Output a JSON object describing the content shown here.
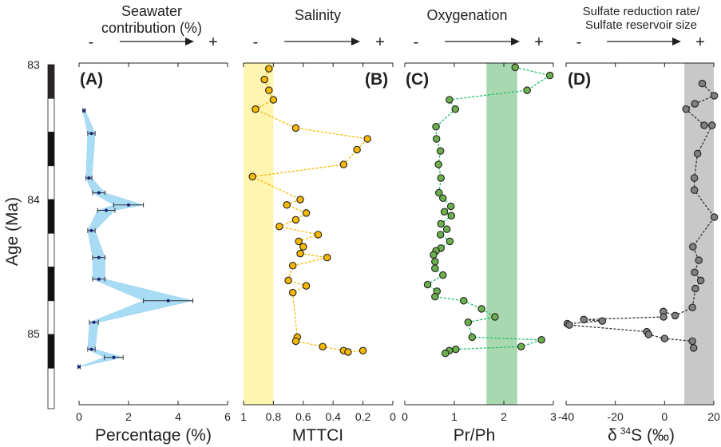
{
  "chart_data": [
    {
      "id": "A",
      "type": "area",
      "panel_label": "(A)",
      "header_lines": [
        "Seawater",
        "contribution (%)"
      ],
      "trend": {
        "minus": "-",
        "plus": "+"
      },
      "xlabel": "Percentage (%)",
      "xlim": [
        0,
        6
      ],
      "xticks": [
        "0",
        "2",
        "4",
        "6"
      ],
      "ylabel": "Age (Ma)",
      "ylim": [
        83,
        85.6
      ],
      "fill_color": "#a8dcf5",
      "point_color": "#1a237e",
      "points": [
        {
          "age": 83.34,
          "value": 0.2,
          "err": 0.05
        },
        {
          "age": 83.51,
          "value": 0.5,
          "err": 0.15
        },
        {
          "age": 83.84,
          "value": 0.4,
          "err": 0.12
        },
        {
          "age": 83.95,
          "value": 0.8,
          "err": 0.25
        },
        {
          "age": 84.04,
          "value": 2.0,
          "err": 0.6
        },
        {
          "age": 84.08,
          "value": 1.1,
          "err": 0.35
        },
        {
          "age": 84.23,
          "value": 0.5,
          "err": 0.15
        },
        {
          "age": 84.43,
          "value": 0.8,
          "err": 0.25
        },
        {
          "age": 84.59,
          "value": 0.8,
          "err": 0.25
        },
        {
          "age": 84.75,
          "value": 3.6,
          "err": 1.0
        },
        {
          "age": 84.91,
          "value": 0.6,
          "err": 0.18
        },
        {
          "age": 85.11,
          "value": 0.5,
          "err": 0.15
        },
        {
          "age": 85.17,
          "value": 1.4,
          "err": 0.38
        },
        {
          "age": 85.24,
          "value": 0.0,
          "err": 0.05
        }
      ]
    },
    {
      "id": "B",
      "type": "scatter",
      "panel_label": "(B)",
      "header_lines": [
        "Salinity"
      ],
      "trend": {
        "minus": "-",
        "plus": "+"
      },
      "xlabel": "MTTCI",
      "xlim": [
        1,
        0
      ],
      "xticks": [
        "1",
        "0.8",
        "0.6",
        "0.4",
        "0.2",
        "0"
      ],
      "band": [
        1.0,
        0.8
      ],
      "band_color": "#fff5b0",
      "marker_color": "#f5b800",
      "line_color": "#f5b800",
      "points": [
        {
          "age": 83.03,
          "value": 0.83
        },
        {
          "age": 83.11,
          "value": 0.86
        },
        {
          "age": 83.19,
          "value": 0.83
        },
        {
          "age": 83.26,
          "value": 0.8
        },
        {
          "age": 83.33,
          "value": 0.92
        },
        {
          "age": 83.47,
          "value": 0.65
        },
        {
          "age": 83.55,
          "value": 0.17
        },
        {
          "age": 83.63,
          "value": 0.24
        },
        {
          "age": 83.74,
          "value": 0.33
        },
        {
          "age": 83.83,
          "value": 0.94
        },
        {
          "age": 84.0,
          "value": 0.62
        },
        {
          "age": 84.04,
          "value": 0.71
        },
        {
          "age": 84.1,
          "value": 0.58
        },
        {
          "age": 84.15,
          "value": 0.65
        },
        {
          "age": 84.2,
          "value": 0.76
        },
        {
          "age": 84.26,
          "value": 0.5
        },
        {
          "age": 84.31,
          "value": 0.63
        },
        {
          "age": 84.35,
          "value": 0.6
        },
        {
          "age": 84.4,
          "value": 0.62
        },
        {
          "age": 84.43,
          "value": 0.44
        },
        {
          "age": 84.49,
          "value": 0.67
        },
        {
          "age": 84.6,
          "value": 0.7
        },
        {
          "age": 84.64,
          "value": 0.58
        },
        {
          "age": 84.69,
          "value": 0.67
        },
        {
          "age": 85.02,
          "value": 0.64
        },
        {
          "age": 85.05,
          "value": 0.65
        },
        {
          "age": 85.09,
          "value": 0.47
        },
        {
          "age": 85.12,
          "value": 0.33
        },
        {
          "age": 85.13,
          "value": 0.3
        },
        {
          "age": 85.12,
          "value": 0.2
        }
      ]
    },
    {
      "id": "C",
      "type": "scatter",
      "panel_label": "(C)",
      "header_lines": [
        "Oxygenation"
      ],
      "trend": {
        "minus": "-",
        "plus": "+"
      },
      "xlabel": "Pr/Ph",
      "xlim": [
        0,
        3
      ],
      "xticks": [
        "0",
        "1",
        "2",
        "3"
      ],
      "band": [
        1.65,
        2.27
      ],
      "band_color": "#a8d8b0",
      "marker_color": "#6ab04c",
      "line_color": "#1fbf6a",
      "points": [
        {
          "age": 83.02,
          "value": 2.23
        },
        {
          "age": 83.08,
          "value": 2.93
        },
        {
          "age": 83.19,
          "value": 2.47
        },
        {
          "age": 83.26,
          "value": 0.9
        },
        {
          "age": 83.33,
          "value": 1.02
        },
        {
          "age": 83.46,
          "value": 0.63
        },
        {
          "age": 83.55,
          "value": 0.64
        },
        {
          "age": 83.64,
          "value": 0.72
        },
        {
          "age": 83.74,
          "value": 0.68
        },
        {
          "age": 83.84,
          "value": 0.73
        },
        {
          "age": 83.95,
          "value": 0.69
        },
        {
          "age": 83.99,
          "value": 0.77
        },
        {
          "age": 84.05,
          "value": 0.93
        },
        {
          "age": 84.09,
          "value": 0.8
        },
        {
          "age": 84.12,
          "value": 0.94
        },
        {
          "age": 84.18,
          "value": 0.73
        },
        {
          "age": 84.22,
          "value": 0.85
        },
        {
          "age": 84.26,
          "value": 0.72
        },
        {
          "age": 84.31,
          "value": 0.91
        },
        {
          "age": 84.36,
          "value": 0.73
        },
        {
          "age": 84.38,
          "value": 0.63
        },
        {
          "age": 84.41,
          "value": 0.58
        },
        {
          "age": 84.46,
          "value": 0.61
        },
        {
          "age": 84.51,
          "value": 0.61
        },
        {
          "age": 84.56,
          "value": 0.77
        },
        {
          "age": 84.63,
          "value": 0.46
        },
        {
          "age": 84.68,
          "value": 0.65
        },
        {
          "age": 84.72,
          "value": 0.61
        },
        {
          "age": 84.75,
          "value": 1.19
        },
        {
          "age": 84.81,
          "value": 1.55
        },
        {
          "age": 84.87,
          "value": 1.82
        },
        {
          "age": 84.91,
          "value": 1.28
        },
        {
          "age": 85.02,
          "value": 1.36
        },
        {
          "age": 85.04,
          "value": 2.76
        },
        {
          "age": 85.09,
          "value": 2.35
        },
        {
          "age": 85.11,
          "value": 1.03
        },
        {
          "age": 85.12,
          "value": 0.9
        },
        {
          "age": 85.14,
          "value": 0.82
        }
      ]
    },
    {
      "id": "D",
      "type": "scatter",
      "panel_label": "(D)",
      "header_lines": [
        "Sulfate reduction rate/",
        "Sulfate reservoir size"
      ],
      "trend": {
        "minus": "-",
        "plus": "+"
      },
      "xlabel": "δ 34S (‰)",
      "xlabel_parts": {
        "delta": "δ",
        "sup": "34",
        "rest": "S (‰)"
      },
      "xlim": [
        -40,
        20
      ],
      "xticks": [
        "-40",
        "-20",
        "0",
        "20"
      ],
      "band": [
        8,
        20
      ],
      "band_color": "#c8c8c8",
      "marker_color": "#808080",
      "line_color": "#333333",
      "points": [
        {
          "age": 83.14,
          "value": 15.3
        },
        {
          "age": 83.23,
          "value": 20.2
        },
        {
          "age": 83.29,
          "value": 12.3
        },
        {
          "age": 83.33,
          "value": 8.7
        },
        {
          "age": 83.45,
          "value": 16.1
        },
        {
          "age": 83.45,
          "value": 19.3
        },
        {
          "age": 83.66,
          "value": 13.4
        },
        {
          "age": 83.84,
          "value": 12.1
        },
        {
          "age": 83.93,
          "value": 12.1
        },
        {
          "age": 84.13,
          "value": 20.2
        },
        {
          "age": 84.35,
          "value": 11.5
        },
        {
          "age": 84.45,
          "value": 13.9
        },
        {
          "age": 84.54,
          "value": 12.2
        },
        {
          "age": 84.6,
          "value": 14.7
        },
        {
          "age": 84.66,
          "value": 12.5
        },
        {
          "age": 84.8,
          "value": 11.3
        },
        {
          "age": 84.86,
          "value": 4.3
        },
        {
          "age": 84.83,
          "value": -0.5
        },
        {
          "age": 84.87,
          "value": -0.4
        },
        {
          "age": 84.89,
          "value": -32.8
        },
        {
          "age": 84.9,
          "value": -25.3
        },
        {
          "age": 84.92,
          "value": -39.5
        },
        {
          "age": 84.93,
          "value": -38.7
        },
        {
          "age": 84.98,
          "value": -7.2
        },
        {
          "age": 85.0,
          "value": -6.5
        },
        {
          "age": 85.03,
          "value": 0.0
        },
        {
          "age": 85.05,
          "value": 11.3
        },
        {
          "age": 85.1,
          "value": 11.8
        }
      ]
    }
  ],
  "age_axis": {
    "title": "Age (Ma)",
    "ticks": [
      "83",
      "84",
      "85"
    ],
    "magnetochron_bar": [
      {
        "from": 83.0,
        "to": 83.25,
        "color": "#2b2424"
      },
      {
        "from": 83.25,
        "to": 83.5,
        "color": "#ffffff"
      },
      {
        "from": 83.5,
        "to": 83.75,
        "color": "#111111"
      },
      {
        "from": 83.75,
        "to": 84.0,
        "color": "#ffffff"
      },
      {
        "from": 84.0,
        "to": 84.25,
        "color": "#111111"
      },
      {
        "from": 84.25,
        "to": 84.5,
        "color": "#ffffff"
      },
      {
        "from": 84.5,
        "to": 84.75,
        "color": "#111111"
      },
      {
        "from": 84.75,
        "to": 85.0,
        "color": "#ffffff"
      },
      {
        "from": 85.0,
        "to": 85.25,
        "color": "#111111"
      },
      {
        "from": 85.25,
        "to": 85.55,
        "color": "#ffffff"
      }
    ]
  }
}
